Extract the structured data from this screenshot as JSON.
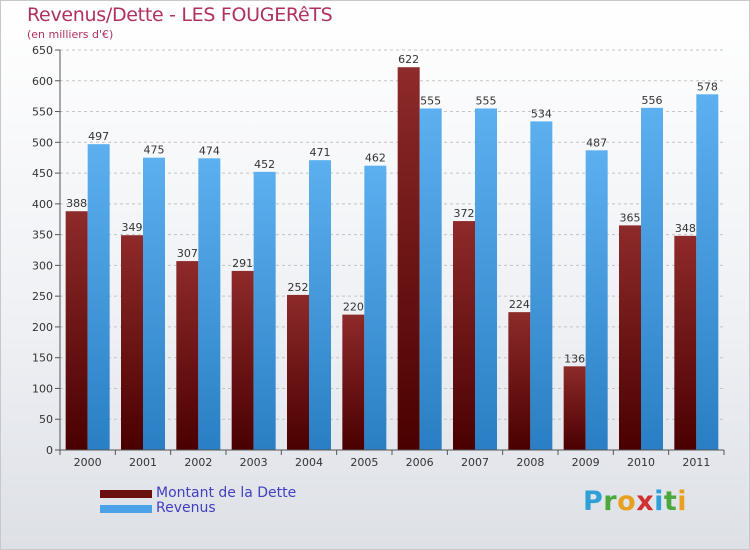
{
  "header": {
    "title": "Revenus/Dette - LES FOUGERêTS",
    "subtitle": "(en milliers d'€)"
  },
  "chart_data": {
    "type": "bar",
    "title": "Revenus/Dette - LES FOUGERêTS",
    "ylabel": "(en milliers d'€)",
    "xlabel": "",
    "ylim": [
      0,
      650
    ],
    "ytick_step": 50,
    "grid": true,
    "categories": [
      "2000",
      "2001",
      "2002",
      "2003",
      "2004",
      "2005",
      "2006",
      "2007",
      "2008",
      "2009",
      "2010",
      "2011"
    ],
    "series": [
      {
        "name": "Montant de la Dette",
        "color": "#7a1c1c",
        "values": [
          388,
          349,
          307,
          291,
          252,
          220,
          622,
          372,
          224,
          136,
          365,
          348
        ]
      },
      {
        "name": "Revenus",
        "color": "#3c9ae0",
        "values": [
          497,
          475,
          474,
          452,
          471,
          462,
          555,
          555,
          534,
          487,
          556,
          578
        ]
      }
    ]
  },
  "legend": {
    "items": [
      {
        "label": "Montant de la Dette",
        "color": "#6b0f0f"
      },
      {
        "label": "Revenus",
        "color": "#4aa3e6"
      }
    ]
  },
  "logo": {
    "letters": [
      "P",
      "r",
      "o",
      "x",
      "i",
      "t",
      "i"
    ]
  }
}
